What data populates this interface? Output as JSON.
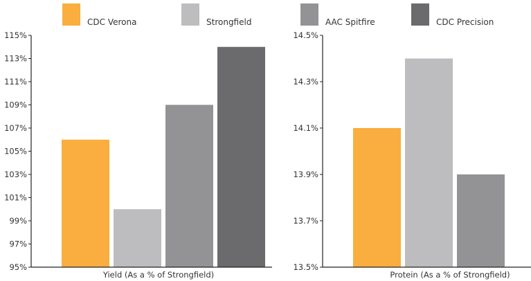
{
  "legend": [
    {
      "label": "CDC Verona",
      "color": "#f9ae3f"
    },
    {
      "label": "Strongfield",
      "color": "#bdbdbf"
    },
    {
      "label": "AAC Spitfire",
      "color": "#939396"
    },
    {
      "label": "CDC Precision",
      "color": "#6b6b6e"
    }
  ],
  "chart_data": [
    {
      "type": "bar",
      "categories": [
        "CDC Verona",
        "Strongfield",
        "AAC Spitfire",
        "CDC Precision"
      ],
      "values": [
        106,
        100,
        109,
        114
      ],
      "colors": [
        "#f9ae3f",
        "#bdbdbf",
        "#939396",
        "#6b6b6e"
      ],
      "xlabel": "Yield (As a % of Strongfield)",
      "ylabel": "",
      "ylim": [
        95,
        115
      ],
      "yticks": [
        95,
        97,
        99,
        101,
        103,
        105,
        107,
        109,
        111,
        113,
        115
      ],
      "ytick_labels": [
        "95%",
        "97%",
        "99%",
        "101%",
        "103%",
        "105%",
        "107%",
        "109%",
        "111%",
        "113%",
        "115%"
      ],
      "grid": false
    },
    {
      "type": "bar",
      "categories": [
        "CDC Verona",
        "Strongfield",
        "AAC Spitfire"
      ],
      "values": [
        14.1,
        14.4,
        13.9
      ],
      "colors": [
        "#f9ae3f",
        "#bdbdbf",
        "#939396"
      ],
      "xlabel": "Protein (As a % of Strongfield)",
      "ylabel": "",
      "ylim": [
        13.5,
        14.5
      ],
      "yticks": [
        13.5,
        13.7,
        13.9,
        14.1,
        14.3,
        14.5
      ],
      "ytick_labels": [
        "13.5%",
        "13.7%",
        "13.9%",
        "14.1%",
        "14.3%",
        "14.5%"
      ],
      "grid": false
    }
  ]
}
